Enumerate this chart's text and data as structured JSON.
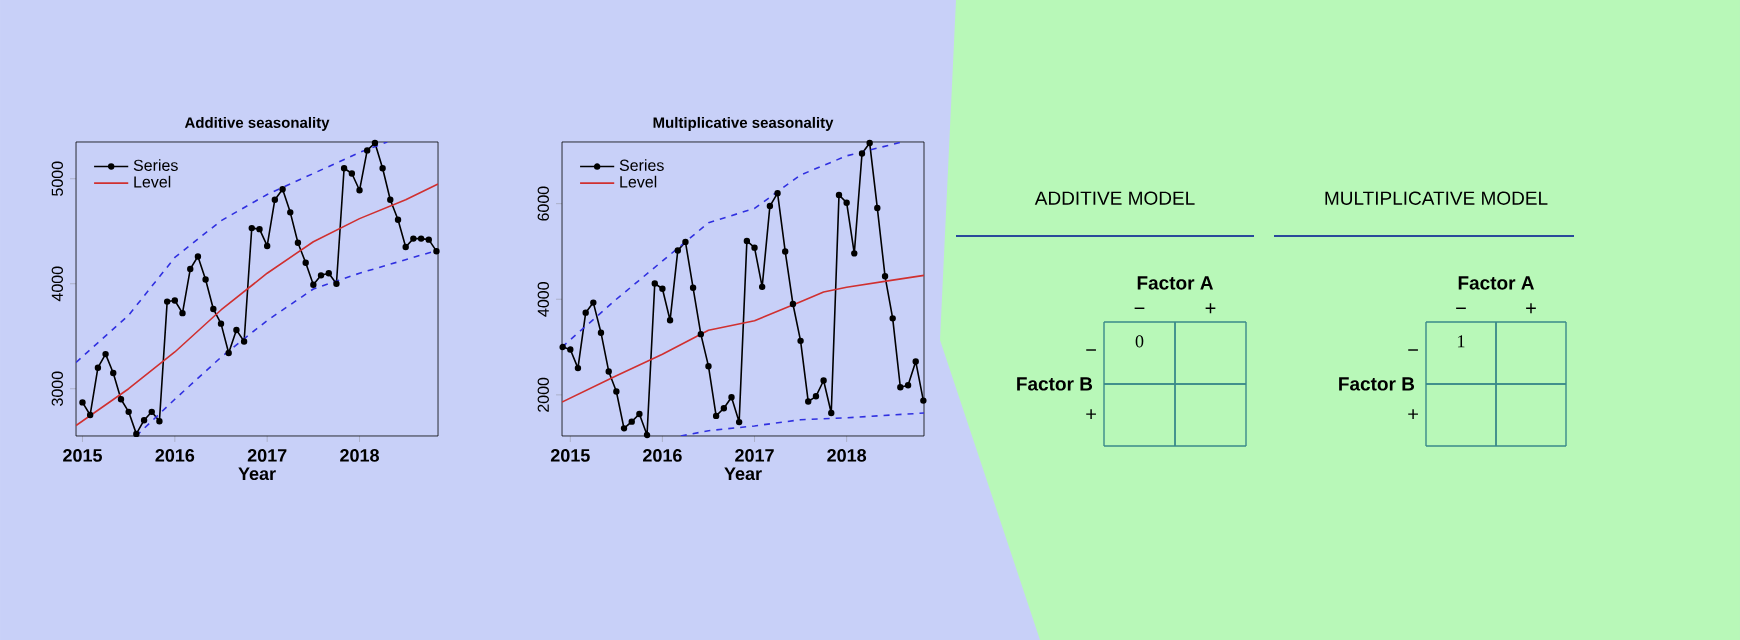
{
  "chart_data": [
    {
      "type": "line",
      "title": "Additive seasonality",
      "xlabel": "Year",
      "xlim": [
        2014.93,
        2018.85
      ],
      "ylim": [
        2550,
        5350
      ],
      "xticks": [
        2015,
        2016,
        2017,
        2018
      ],
      "yticks": [
        3000,
        4000,
        5000
      ],
      "legend": "top left",
      "series": [
        {
          "name": "Series",
          "color": "#000000",
          "marker": "circle",
          "x": [
            2015.0,
            2015.083,
            2015.167,
            2015.25,
            2015.333,
            2015.417,
            2015.5,
            2015.583,
            2015.667,
            2015.75,
            2015.833,
            2015.917,
            2016.0,
            2016.083,
            2016.167,
            2016.25,
            2016.333,
            2016.417,
            2016.5,
            2016.583,
            2016.667,
            2016.75,
            2016.833,
            2016.917,
            2017.0,
            2017.083,
            2017.167,
            2017.25,
            2017.333,
            2017.417,
            2017.5,
            2017.583,
            2017.667,
            2017.75,
            2017.833,
            2017.917,
            2018.0,
            2018.083,
            2018.167,
            2018.25,
            2018.333,
            2018.417,
            2018.5,
            2018.583,
            2018.667,
            2018.75,
            2018.833
          ],
          "values": [
            2870,
            2750,
            3200,
            3330,
            3150,
            2900,
            2780,
            2570,
            2700,
            2780,
            2690,
            3830,
            3840,
            3720,
            4140,
            4260,
            4040,
            3760,
            3620,
            3340,
            3560,
            3450,
            4530,
            4520,
            4360,
            4800,
            4900,
            4680,
            4390,
            4200,
            3990,
            4080,
            4100,
            4000,
            5100,
            5050,
            4890,
            5270,
            5340,
            5100,
            4800,
            4610,
            4350,
            4430,
            4430,
            4420,
            4310
          ]
        },
        {
          "name": "Level",
          "color": "#d03030",
          "x": [
            2014.93,
            2015.5,
            2016,
            2016.5,
            2017,
            2017.5,
            2018,
            2018.5,
            2018.85
          ],
          "values": [
            2650,
            3000,
            3350,
            3750,
            4100,
            4400,
            4620,
            4800,
            4950
          ]
        },
        {
          "color": "#3030e0",
          "line_style": "dashed",
          "x": [
            2014.93,
            2015.5,
            2016,
            2016.5,
            2017,
            2017.5,
            2018,
            2018.3
          ],
          "values": [
            3250,
            3700,
            4250,
            4600,
            4850,
            5050,
            5250,
            5350
          ]
        },
        {
          "color": "#3030e0",
          "line_style": "dashed",
          "x": [
            2015.58,
            2016,
            2016.5,
            2017,
            2017.5,
            2018,
            2018.85
          ],
          "values": [
            2550,
            2900,
            3300,
            3650,
            3950,
            4100,
            4320
          ]
        }
      ]
    },
    {
      "type": "line",
      "title": "Multiplicative seasonality",
      "xlabel": "Year",
      "xlim": [
        2014.91,
        2018.84
      ],
      "ylim": [
        1140,
        7290
      ],
      "xticks": [
        2015,
        2016,
        2017,
        2018
      ],
      "yticks": [
        2000,
        4000,
        6000
      ],
      "legend": "top left",
      "series": [
        {
          "name": "Series",
          "color": "#000000",
          "marker": "circle",
          "x": [
            2014.917,
            2015.0,
            2015.083,
            2015.167,
            2015.25,
            2015.333,
            2015.417,
            2015.5,
            2015.583,
            2015.667,
            2015.75,
            2015.833,
            2015.917,
            2016.0,
            2016.083,
            2016.167,
            2016.25,
            2016.333,
            2016.417,
            2016.5,
            2016.583,
            2016.667,
            2016.75,
            2016.833,
            2016.917,
            2017.0,
            2017.083,
            2017.167,
            2017.25,
            2017.333,
            2017.417,
            2017.5,
            2017.583,
            2017.667,
            2017.75,
            2017.833,
            2017.917,
            2018.0,
            2018.083,
            2018.167,
            2018.25,
            2018.333,
            2018.417,
            2018.5,
            2018.583,
            2018.667,
            2018.75,
            2018.833
          ],
          "values": [
            3000,
            2950,
            2560,
            3720,
            3930,
            3300,
            2490,
            2070,
            1300,
            1440,
            1600,
            1160,
            4330,
            4220,
            3560,
            5020,
            5200,
            4240,
            3270,
            2600,
            1560,
            1720,
            1950,
            1430,
            5220,
            5080,
            4260,
            5950,
            6220,
            5000,
            3900,
            3130,
            1860,
            1970,
            2300,
            1620,
            6180,
            6020,
            4960,
            7050,
            7270,
            5910,
            4480,
            3600,
            2160,
            2200,
            2700,
            1880
          ]
        },
        {
          "name": "Level",
          "color": "#d03030",
          "x": [
            2014.91,
            2015.5,
            2016,
            2016.5,
            2017,
            2017.5,
            2017.75,
            2018,
            2018.5,
            2018.84
          ],
          "values": [
            1850,
            2400,
            2850,
            3350,
            3550,
            3950,
            4150,
            4250,
            4400,
            4500
          ]
        },
        {
          "color": "#3030e0",
          "line_style": "dashed",
          "x": [
            2014.91,
            2015.5,
            2016,
            2016.5,
            2017,
            2017.5,
            2018,
            2018.6
          ],
          "values": [
            3000,
            4000,
            4800,
            5600,
            5900,
            6600,
            7000,
            7290
          ]
        },
        {
          "color": "#3030e0",
          "line_style": "dashed",
          "x": [
            2016.2,
            2016.5,
            2017,
            2017.5,
            2018,
            2018.84
          ],
          "values": [
            1140,
            1250,
            1350,
            1480,
            1520,
            1620
          ]
        }
      ]
    },
    {
      "type": "heatmap",
      "title": "ADDITIVE MODEL",
      "xlabel": "Factor A",
      "ylabel": "Factor B",
      "categories": [
        "−",
        "+"
      ],
      "y_categories": [
        "−",
        "+"
      ],
      "cells": [
        [
          0,
          null
        ],
        [
          null,
          null
        ]
      ],
      "data_labels": true
    },
    {
      "type": "heatmap",
      "title": "MULTIPLICATIVE MODEL",
      "xlabel": "Factor A",
      "ylabel": "Factor B",
      "categories": [
        "−",
        "+"
      ],
      "y_categories": [
        "−",
        "+"
      ],
      "cells": [
        [
          1,
          null
        ],
        [
          null,
          null
        ]
      ],
      "data_labels": true
    }
  ]
}
